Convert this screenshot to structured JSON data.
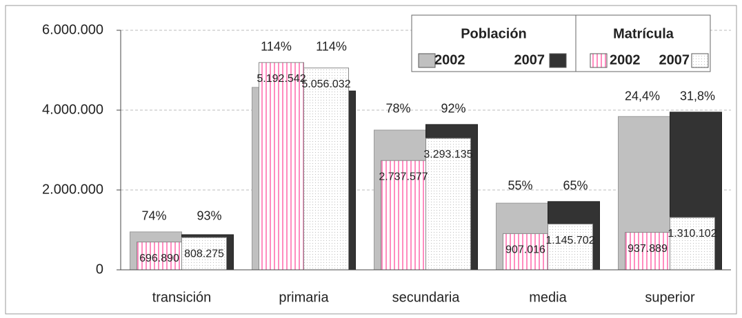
{
  "chart_data": {
    "type": "bar",
    "categories": [
      "transición",
      "primaria",
      "secundaria",
      "media",
      "superior"
    ],
    "legend_groups": [
      "Población",
      "Matrícula"
    ],
    "series": [
      {
        "name": "2002",
        "color": "#c0c0c0",
        "values": [
          950000,
          4570000,
          3500000,
          1670000,
          3840000
        ]
      },
      {
        "name": "2007",
        "color": "#333333",
        "values": [
          880000,
          4480000,
          3640000,
          1710000,
          3950000
        ]
      },
      {
        "name": "2002",
        "color": "#ff66aa",
        "values": [
          696890,
          5192542,
          2737577,
          907016,
          937889
        ],
        "value_labels": [
          "696.890",
          "5.192.542",
          "2.737.577",
          "907.016",
          "937.889"
        ]
      },
      {
        "name": "2007",
        "color": "#bbbbbb",
        "values": [
          808275,
          5056032,
          3293135,
          1145702,
          1310102
        ],
        "value_labels": [
          "808.275",
          "5.056.032",
          "3.293.135",
          "1.145.702",
          "1.310.102"
        ]
      }
    ],
    "annotations_2002": [
      "74%",
      "114%",
      "78%",
      "55%",
      "24,4%"
    ],
    "annotations_2007": [
      "93%",
      "114%",
      "92%",
      "65%",
      "31,8%"
    ],
    "ylim": [
      0,
      6000000
    ],
    "yticks": [
      0,
      {
        "value": 2000000,
        "label": "2.000.000"
      },
      {
        "value": 4000000,
        "label": "4.000.000"
      },
      {
        "value": 6000000,
        "label": "6.000.000"
      }
    ],
    "grid": true
  }
}
